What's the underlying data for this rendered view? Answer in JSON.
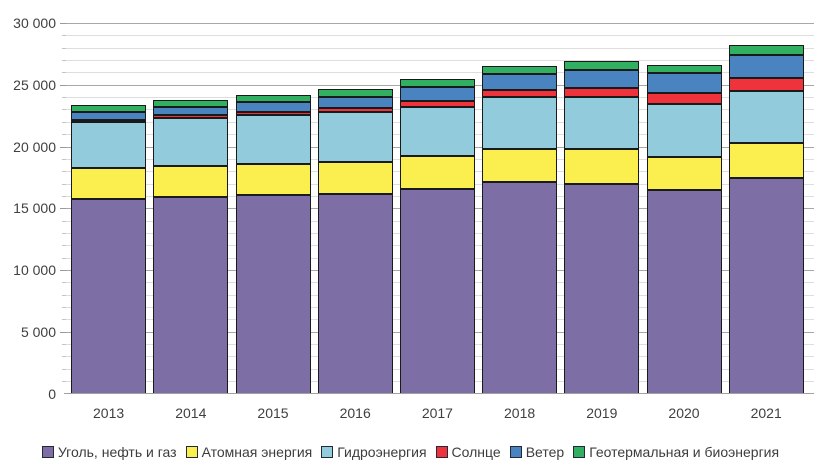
{
  "chart_data": {
    "type": "bar",
    "stacked": true,
    "categories": [
      "2013",
      "2014",
      "2015",
      "2016",
      "2017",
      "2018",
      "2019",
      "2020",
      "2021"
    ],
    "series": [
      {
        "name": "Уголь, нефть и газ",
        "color": "#7d6ea6",
        "values": [
          15750,
          15900,
          16050,
          16150,
          16600,
          17100,
          17000,
          16450,
          17430
        ]
      },
      {
        "name": "Атомная энергия",
        "color": "#fbee4f",
        "values": [
          2500,
          2540,
          2570,
          2610,
          2640,
          2700,
          2790,
          2680,
          2820
        ]
      },
      {
        "name": "Гидроэнергия",
        "color": "#92cbdc",
        "values": [
          3750,
          3890,
          3900,
          4000,
          3970,
          4190,
          4240,
          4350,
          4260
        ]
      },
      {
        "name": "Солнце",
        "color": "#ee333d",
        "values": [
          150,
          200,
          260,
          330,
          450,
          600,
          700,
          870,
          1050
        ]
      },
      {
        "name": "Ветер",
        "color": "#4a84c0",
        "values": [
          650,
          700,
          830,
          960,
          1130,
          1280,
          1450,
          1590,
          1870
        ]
      },
      {
        "name": "Геотермальная и биоэнергия",
        "color": "#31b061",
        "values": [
          550,
          580,
          600,
          630,
          650,
          660,
          710,
          680,
          760
        ]
      }
    ],
    "totals": [
      23350,
      23810,
      24210,
      24680,
      25440,
      26530,
      26890,
      26620,
      28190
    ],
    "ylim": [
      0,
      30000
    ],
    "y_major_step": 5000,
    "y_minor_step": 1000,
    "y_tick_labels": [
      "0",
      "5 000",
      "10 000",
      "15 000",
      "20 000",
      "25 000",
      "30 000"
    ],
    "grid": "horizontal, minor every 1000, major every 5000",
    "legend_position": "bottom-center"
  },
  "colors": {
    "background": "#ffffff",
    "bar_border": "#1a1a1a",
    "gridline_minor": "#dedede",
    "gridline_major": "#a8a8a8",
    "axis_line": "#a0a0a0",
    "text": "#404040"
  }
}
